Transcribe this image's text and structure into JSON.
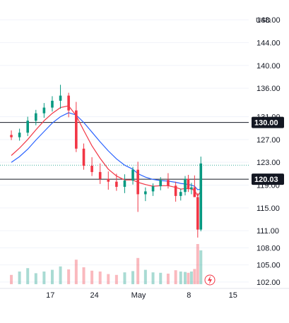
{
  "currency_label": "USD",
  "chart_data": {
    "type": "candlestick",
    "currency": "USD",
    "x_tick_labels": [
      "17",
      "24",
      "May",
      "8",
      "15"
    ],
    "x_tick_positions": [
      6.5,
      13.5,
      20.5,
      28.5,
      35.5
    ],
    "y_ticks": [
      102.0,
      105.0,
      108.0,
      111.0,
      115.0,
      119.0,
      123.0,
      127.0,
      131.0,
      136.0,
      140.0,
      144.0,
      148.0
    ],
    "ylim": [
      101.0,
      149.0
    ],
    "horizontal_lines": [
      {
        "label": "130.00",
        "value": 130.0,
        "color": "#131722"
      },
      {
        "label": "120.03",
        "value": 120.03,
        "color": "#131722"
      }
    ],
    "dotted_level": 122.5,
    "ohlc": [
      [
        127.8,
        128.6,
        126.9,
        127.4
      ],
      [
        127.4,
        128.9,
        126.8,
        128.2
      ],
      [
        128.2,
        131.0,
        127.6,
        130.3
      ],
      [
        130.3,
        132.2,
        129.5,
        131.6
      ],
      [
        131.6,
        133.4,
        130.8,
        132.6
      ],
      [
        132.6,
        134.6,
        131.9,
        133.8
      ],
      [
        133.8,
        136.6,
        132.4,
        134.7
      ],
      [
        134.7,
        135.2,
        130.9,
        132.1
      ],
      [
        132.1,
        133.6,
        124.8,
        125.4
      ],
      [
        125.4,
        126.3,
        121.7,
        122.4
      ],
      [
        122.4,
        123.9,
        120.6,
        121.3
      ],
      [
        121.3,
        122.8,
        119.2,
        120.1
      ],
      [
        120.1,
        121.4,
        118.2,
        119.6
      ],
      [
        119.6,
        121.0,
        118.0,
        118.7
      ],
      [
        118.7,
        120.9,
        117.6,
        119.8
      ],
      [
        119.8,
        122.2,
        119.1,
        121.7
      ],
      [
        121.7,
        123.1,
        114.3,
        117.4
      ],
      [
        117.4,
        118.6,
        116.2,
        117.9
      ],
      [
        117.9,
        119.3,
        117.1,
        118.8
      ],
      [
        118.8,
        120.4,
        118.1,
        119.9
      ],
      [
        119.9,
        121.1,
        118.4,
        118.9
      ],
      [
        118.9,
        119.6,
        116.1,
        117.1
      ],
      [
        117.1,
        118.4,
        116.3,
        117.8
      ],
      [
        117.8,
        120.6,
        117.2,
        120.1
      ],
      [
        120.1,
        120.8,
        117.8,
        118.3
      ],
      [
        118.3,
        119.4,
        117.4,
        118.6
      ],
      [
        118.6,
        120.7,
        117.1,
        116.9
      ],
      [
        116.9,
        117.6,
        109.8,
        111.2
      ],
      [
        111.2,
        124.0,
        110.9,
        122.8
      ]
    ],
    "candle_x": [
      0.3,
      1.6,
      2.9,
      4.2,
      5.5,
      6.8,
      8.1,
      9.4,
      10.6,
      11.8,
      13.1,
      14.4,
      15.7,
      17.0,
      18.3,
      19.6,
      20.4,
      21.6,
      22.8,
      24.0,
      25.2,
      26.4,
      27.2,
      27.9,
      28.4,
      28.9,
      29.4,
      29.9,
      30.4
    ],
    "sma_fast": [
      124.2,
      125.5,
      127.0,
      128.7,
      130.3,
      131.6,
      132.6,
      132.9,
      131.2,
      128.6,
      125.9,
      123.7,
      121.8,
      120.6,
      119.9,
      119.9,
      119.5,
      119.1,
      118.8,
      118.9,
      118.9,
      118.6,
      118.3,
      118.4,
      118.4,
      118.3,
      118.1,
      117.1,
      118.0
    ],
    "sma_slow": [
      123.0,
      124.0,
      125.3,
      126.9,
      128.4,
      129.9,
      131.0,
      131.7,
      131.3,
      130.0,
      128.3,
      126.6,
      125.0,
      123.6,
      122.5,
      121.8,
      121.0,
      120.4,
      120.0,
      119.8,
      119.7,
      119.5,
      119.3,
      119.2,
      119.1,
      119.0,
      118.8,
      118.2,
      118.3
    ],
    "volume_relative": [
      0.22,
      0.3,
      0.38,
      0.26,
      0.3,
      0.34,
      0.42,
      0.35,
      0.58,
      0.4,
      0.32,
      0.3,
      0.24,
      0.22,
      0.28,
      0.31,
      0.62,
      0.34,
      0.28,
      0.27,
      0.25,
      0.33,
      0.3,
      0.29,
      0.27,
      0.3,
      0.36,
      0.95,
      0.8
    ]
  }
}
